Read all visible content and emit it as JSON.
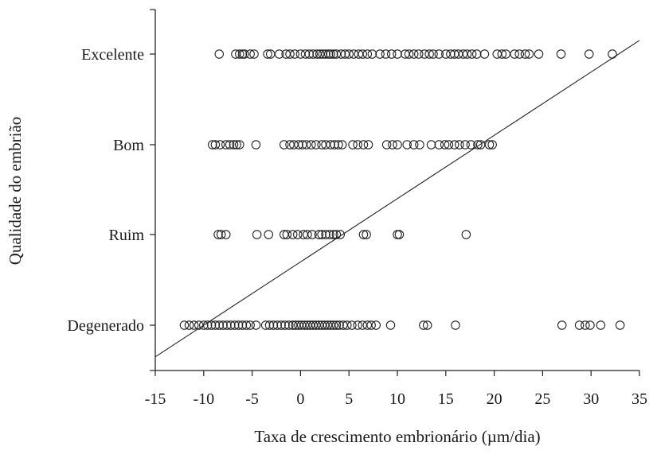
{
  "chart_data": {
    "type": "scatter",
    "title": "",
    "xlabel": "Taxa de crescimento embrionário (µm/dia)",
    "ylabel": "Qualidade do embrião",
    "xlim": [
      -15,
      35
    ],
    "x_ticks": [
      "-15",
      "-10",
      "-5",
      "0",
      "5",
      "10",
      "15",
      "20",
      "25",
      "30",
      "35"
    ],
    "categories": [
      "Degenerado",
      "Ruim",
      "Bom",
      "Excelente"
    ],
    "grid": false,
    "legend": "none",
    "marker": "open-circle",
    "series": [
      {
        "category": "Excelente",
        "x": [
          -8.4,
          -6.7,
          -6.3,
          -6.0,
          -5.8,
          -5.2,
          -4.8,
          -3.4,
          -3.1,
          -2.2,
          -1.5,
          -1.1,
          -0.6,
          0.0,
          0.5,
          0.9,
          1.3,
          1.7,
          2.0,
          2.3,
          2.6,
          2.9,
          3.1,
          3.4,
          3.7,
          4.2,
          4.6,
          5.0,
          5.5,
          6.0,
          6.4,
          6.9,
          7.4,
          8.2,
          8.8,
          9.4,
          10.0,
          10.8,
          11.2,
          11.7,
          12.2,
          12.8,
          13.3,
          13.7,
          14.3,
          15.0,
          15.5,
          15.9,
          16.3,
          16.8,
          17.2,
          17.7,
          18.2,
          19.0,
          20.3,
          20.8,
          21.2,
          22.1,
          22.6,
          23.2,
          23.6,
          24.6,
          26.9,
          29.8,
          32.2
        ]
      },
      {
        "category": "Bom",
        "x": [
          -9.1,
          -8.8,
          -8.3,
          -7.7,
          -7.3,
          -6.9,
          -6.6,
          -6.3,
          -4.6,
          -1.7,
          -1.1,
          -0.7,
          -0.2,
          0.2,
          0.6,
          1.1,
          1.6,
          2.2,
          2.6,
          3.1,
          3.5,
          3.9,
          4.3,
          5.4,
          5.9,
          6.5,
          7.0,
          8.9,
          9.5,
          10.0,
          11.0,
          11.7,
          12.3,
          13.5,
          14.3,
          14.9,
          15.3,
          15.9,
          16.4,
          17.0,
          17.6,
          18.3,
          18.6,
          19.5,
          19.8
        ]
      },
      {
        "category": "Ruim",
        "x": [
          -8.5,
          -8.2,
          -7.7,
          -4.5,
          -3.3,
          -1.7,
          -1.4,
          -0.8,
          -0.3,
          0.3,
          0.7,
          1.2,
          1.9,
          2.2,
          2.6,
          3.0,
          3.4,
          3.7,
          4.1,
          6.5,
          6.8,
          10.0,
          10.2,
          17.1
        ]
      },
      {
        "category": "Degenerado",
        "x": [
          -12.0,
          -11.5,
          -11.0,
          -10.5,
          -10.0,
          -9.6,
          -9.2,
          -8.8,
          -8.4,
          -8.0,
          -7.6,
          -7.2,
          -6.8,
          -6.4,
          -6.0,
          -5.6,
          -5.2,
          -4.6,
          -3.6,
          -3.2,
          -2.8,
          -2.4,
          -2.0,
          -1.6,
          -1.2,
          -0.8,
          -0.5,
          -0.2,
          0.1,
          0.4,
          0.7,
          1.0,
          1.3,
          1.6,
          1.9,
          2.2,
          2.5,
          2.8,
          3.1,
          3.4,
          3.7,
          4.0,
          4.4,
          4.8,
          5.3,
          5.9,
          6.4,
          6.9,
          7.3,
          7.8,
          9.3,
          12.7,
          13.1,
          16.0,
          27.0,
          28.8,
          29.4,
          29.9,
          31.0,
          33.0
        ]
      }
    ],
    "trend_line": {
      "x": [
        -15,
        35
      ],
      "y_level": [
        -0.35,
        3.15
      ]
    }
  }
}
